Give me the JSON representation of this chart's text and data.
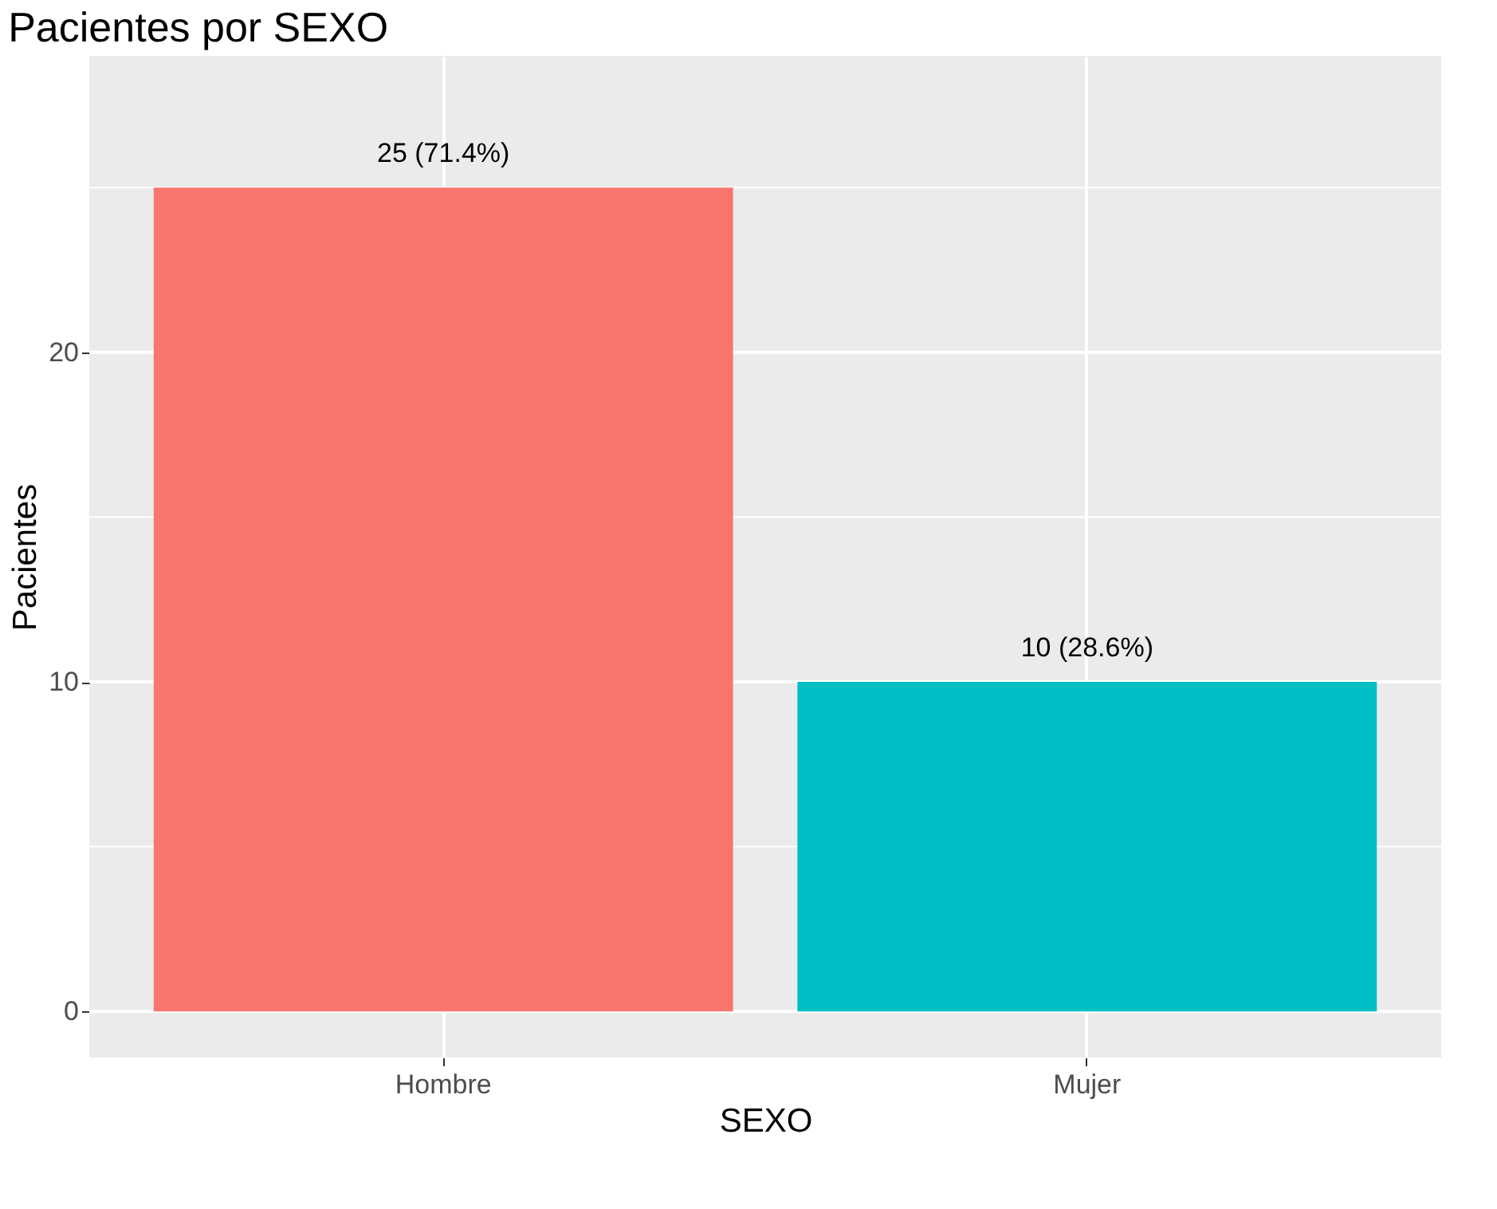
{
  "chart_data": {
    "type": "bar",
    "title": "Pacientes por SEXO",
    "xlabel": "SEXO",
    "ylabel": "Pacientes",
    "categories": [
      "Hombre",
      "Mujer"
    ],
    "values": [
      25,
      10
    ],
    "colors": [
      "#f8766d",
      "#00bfc4"
    ],
    "value_labels": [
      "25 (71.4%)",
      "10 (28.6%)"
    ],
    "ylim": [
      -1.4,
      29
    ],
    "yticks": [
      0,
      {
        "value": 5,
        "label": null
      },
      10,
      {
        "value": 15,
        "label": null
      },
      20,
      {
        "value": 25,
        "label": null
      }
    ],
    "grid": true
  }
}
